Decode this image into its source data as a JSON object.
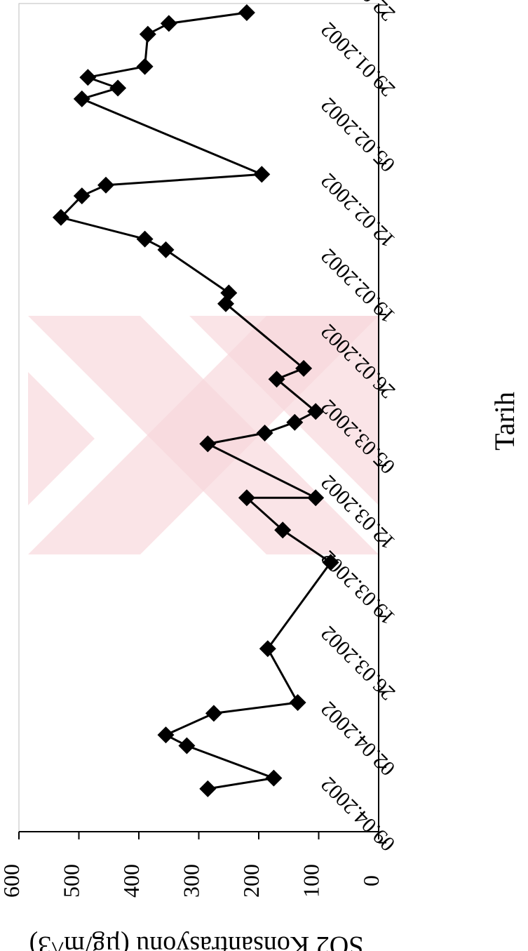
{
  "chart_data": {
    "type": "line",
    "orientation": "rotated 90 degrees clockwise (dates run top to bottom, values run right to left)",
    "xlabel": "Tarih",
    "ylabel": "SO2 Konsantrasyonu (µg/m^3)",
    "ylim": [
      0,
      600
    ],
    "yticks": [
      0,
      100,
      200,
      300,
      400,
      500,
      600
    ],
    "xlim": [
      "22.01.2002",
      "16.04.2002"
    ],
    "xticks": [
      "22.01.2002",
      "29.01.2002",
      "05.02.2002",
      "12.02.2002",
      "19.02.2002",
      "26.02.2002",
      "05.03.2002",
      "12.03.2002",
      "19.03.2002",
      "26.03.2002",
      "02.04.2002",
      "09.04.2002"
    ],
    "grid": false,
    "legend": "none",
    "marker": "diamond",
    "line_color": "#000000",
    "series": [
      {
        "points": [
          {
            "x": "22.01.2002",
            "y": 220
          },
          {
            "x": "23.01.2002",
            "y": 350
          },
          {
            "x": "24.01.2002",
            "y": 385
          },
          {
            "x": "27.01.2002",
            "y": 390
          },
          {
            "x": "28.01.2002",
            "y": 485
          },
          {
            "x": "29.01.2002",
            "y": 435
          },
          {
            "x": "30.01.2002",
            "y": 495
          },
          {
            "x": "06.02.2002",
            "y": 195
          },
          {
            "x": "07.02.2002",
            "y": 455
          },
          {
            "x": "08.02.2002",
            "y": 495
          },
          {
            "x": "10.02.2002",
            "y": 530
          },
          {
            "x": "12.02.2002",
            "y": 390
          },
          {
            "x": "13.02.2002",
            "y": 355
          },
          {
            "x": "17.02.2002",
            "y": 250
          },
          {
            "x": "18.02.2002",
            "y": 255
          },
          {
            "x": "24.02.2002",
            "y": 125
          },
          {
            "x": "25.02.2002",
            "y": 170
          },
          {
            "x": "28.02.2002",
            "y": 105
          },
          {
            "x": "01.03.2002",
            "y": 140
          },
          {
            "x": "02.03.2002",
            "y": 190
          },
          {
            "x": "03.03.2002",
            "y": 285
          },
          {
            "x": "08.03.2002",
            "y": 105
          },
          {
            "x": "08.03.2002",
            "y": 220
          },
          {
            "x": "11.03.2002",
            "y": 160
          },
          {
            "x": "14.03.2002",
            "y": 80
          },
          {
            "x": "22.03.2002",
            "y": 185
          },
          {
            "x": "27.03.2002",
            "y": 135
          },
          {
            "x": "28.03.2002",
            "y": 275
          },
          {
            "x": "30.03.2002",
            "y": 355
          },
          {
            "x": "31.03.2002",
            "y": 320
          },
          {
            "x": "03.04.2002",
            "y": 175
          },
          {
            "x": "04.04.2002",
            "y": 285
          }
        ]
      }
    ]
  }
}
